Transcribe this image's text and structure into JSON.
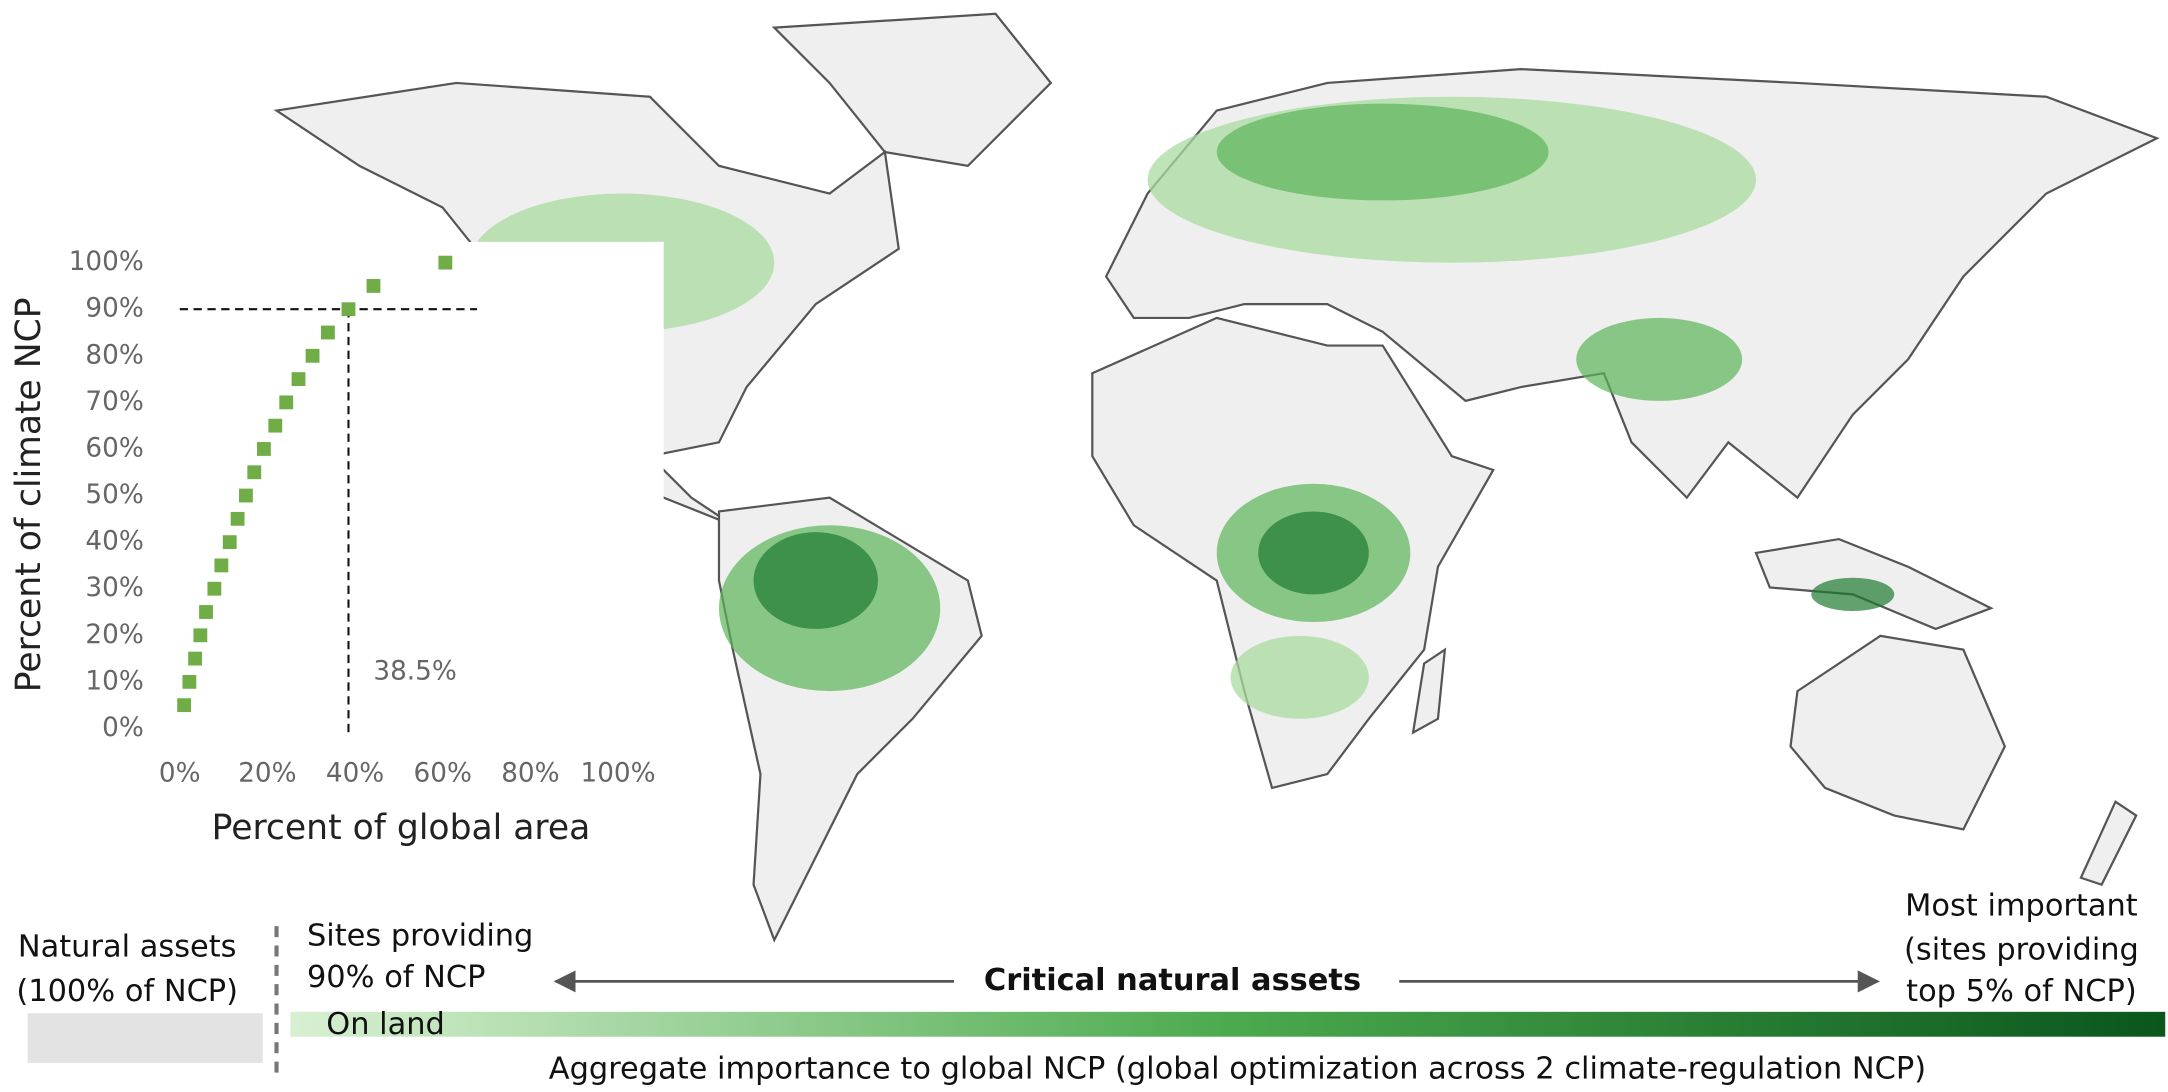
{
  "chart_data": {
    "type": "scatter",
    "xlabel": "Percent of global area",
    "ylabel": "Percent of climate NCP",
    "color": "#70ad47",
    "x": [
      1,
      2.2,
      3.5,
      4.7,
      6,
      7.9,
      9.5,
      11.4,
      13.2,
      15.1,
      17,
      19.2,
      21.8,
      24.3,
      27.1,
      30.3,
      33.8,
      38.5,
      44.2,
      60.6
    ],
    "values": [
      5,
      10,
      15,
      20,
      25,
      30,
      35,
      40,
      45,
      50,
      55,
      60,
      65,
      70,
      75,
      80,
      85,
      90,
      95,
      100
    ],
    "xlim": [
      0,
      100
    ],
    "ylim": [
      0,
      100
    ],
    "xticks": [
      {
        "value": 0,
        "label": "0%"
      },
      {
        "value": 20,
        "label": "20%"
      },
      {
        "value": 40,
        "label": "40%"
      },
      {
        "value": 60,
        "label": "60%"
      },
      {
        "value": 80,
        "label": "80%"
      },
      {
        "value": 100,
        "label": "100%"
      }
    ],
    "yticks": [
      {
        "value": 0,
        "label": "0%"
      },
      {
        "value": 10,
        "label": "10%"
      },
      {
        "value": 20,
        "label": "20%"
      },
      {
        "value": 30,
        "label": "30%"
      },
      {
        "value": 40,
        "label": "40%"
      },
      {
        "value": 50,
        "label": "50%"
      },
      {
        "value": 60,
        "label": "60%"
      },
      {
        "value": 70,
        "label": "70%"
      },
      {
        "value": 80,
        "label": "80%"
      },
      {
        "value": 90,
        "label": "90%"
      },
      {
        "value": 100,
        "label": "100%"
      }
    ],
    "reference": {
      "x": 38.5,
      "y": 90,
      "label": "38.5%"
    }
  },
  "legend": {
    "natural_assets": [
      "Natural assets",
      "(100% of NCP)"
    ],
    "sites": [
      "Sites providing",
      "90% of NCP"
    ],
    "critical": "Critical natural assets",
    "most_important": [
      "Most important",
      "(sites providing",
      "top 5% of NCP)"
    ],
    "on_land": "On land",
    "axis_label": "Aggregate importance to global NCP (global optimization across 2 climate-regulation NCP)"
  }
}
